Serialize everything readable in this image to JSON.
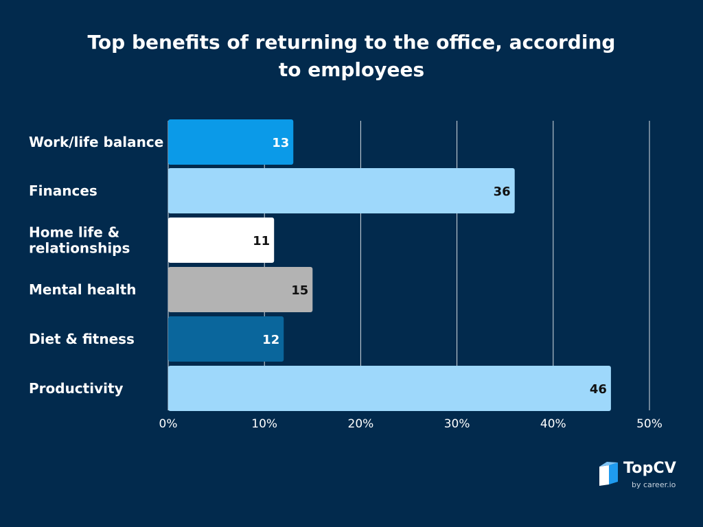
{
  "chart_data": {
    "type": "bar",
    "orientation": "horizontal",
    "title": "Top benefits of returning to the office, according to employees",
    "categories": [
      "Work/life balance",
      "Finances",
      "Home life & relationships",
      "Mental health",
      "Diet & fitness",
      "Productivity"
    ],
    "category_lines": [
      [
        "Work/life balance"
      ],
      [
        "Finances"
      ],
      [
        "Home life &",
        "relationships"
      ],
      [
        "Mental health"
      ],
      [
        "Diet & fitness"
      ],
      [
        "Productivity"
      ]
    ],
    "values": [
      13,
      36,
      11,
      15,
      12,
      46
    ],
    "value_labels": [
      "13",
      "36",
      "11",
      "15",
      "12",
      "46"
    ],
    "bar_colors": [
      "#0b9ae8",
      "#9ed8fb",
      "#ffffff",
      "#b3b3b3",
      "#0a669c",
      "#9ed8fb"
    ],
    "label_colors": [
      "#ffffff",
      "#111111",
      "#111111",
      "#111111",
      "#ffffff",
      "#111111"
    ],
    "xlim": [
      0,
      50
    ],
    "ticks": [
      0,
      10,
      20,
      30,
      40,
      50
    ],
    "tick_labels": [
      "0%",
      "10%",
      "20%",
      "30%",
      "40%",
      "50%"
    ],
    "grid": true
  },
  "branding": {
    "name": "TopCV",
    "tagline": "by career.io"
  }
}
